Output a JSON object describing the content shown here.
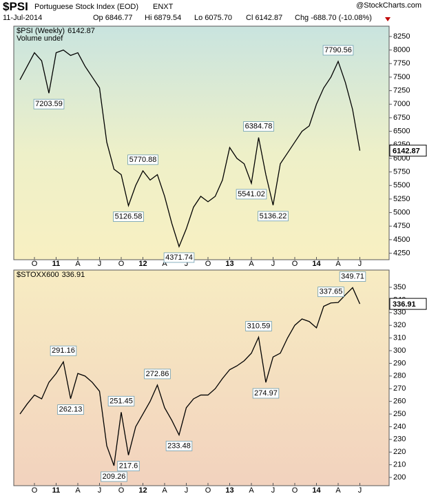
{
  "header": {
    "symbol": "$PSI",
    "name": "Portuguese Stock Index (EOD)",
    "exchange": "ENXT",
    "source": "@StockCharts.com",
    "date": "11-Jul-2014",
    "open": "Op 6846.77",
    "high": "Hi 6879.54",
    "low": "Lo 6075.70",
    "close": "Cl 6142.87",
    "change": "Chg -688.70 (-10.08%)"
  },
  "chart_data": [
    {
      "type": "line",
      "note": "Volume undef",
      "categories": [
        null,
        null,
        "O",
        null,
        null,
        "11",
        null,
        null,
        "A",
        null,
        null,
        "J",
        null,
        null,
        "O",
        null,
        null,
        "12",
        null,
        null,
        "A",
        null,
        null,
        "J",
        null,
        null,
        "O",
        null,
        null,
        "13",
        null,
        null,
        "A",
        null,
        null,
        "J",
        null,
        null,
        "O",
        null,
        null,
        "14",
        null,
        null,
        "A",
        null,
        null,
        "J"
      ],
      "series": [
        {
          "name": "$PSI (Weekly)",
          "color": "#000000",
          "values": [
            7450,
            7700,
            7950,
            7800,
            7203.59,
            7950,
            8000,
            7900,
            7950,
            7700,
            7500,
            7300,
            6300,
            5800,
            5700,
            5126.58,
            5500,
            5770.88,
            5600,
            5700,
            5300,
            4800,
            4371.74,
            4700,
            5100,
            5300,
            5200,
            5300,
            5600,
            6200,
            6000,
            5900,
            5541.02,
            6384.78,
            5700,
            5136.22,
            5900,
            6100,
            6300,
            6500,
            6600,
            7000,
            7300,
            7500,
            7790.56,
            7400,
            6900,
            6142.87
          ]
        }
      ],
      "annotate": [
        4,
        15,
        17,
        22,
        32,
        33,
        35,
        44
      ],
      "ylim": [
        4130,
        8440
      ],
      "yticks": [
        4250,
        4500,
        4750,
        5000,
        5250,
        5500,
        5750,
        6000,
        6250,
        6500,
        6750,
        7000,
        7250,
        7500,
        7750,
        8000,
        8250
      ],
      "grid": false
    },
    {
      "type": "line",
      "categories": [
        null,
        null,
        "O",
        null,
        null,
        "11",
        null,
        null,
        "A",
        null,
        null,
        "J",
        null,
        null,
        "O",
        null,
        null,
        "12",
        null,
        null,
        "A",
        null,
        null,
        "J",
        null,
        null,
        "O",
        null,
        null,
        "13",
        null,
        null,
        "A",
        null,
        null,
        "J",
        null,
        null,
        "O",
        null,
        null,
        "14",
        null,
        null,
        "A",
        null,
        null,
        "J"
      ],
      "series": [
        {
          "name": "$STOXX600",
          "color": "#000000",
          "values": [
            250,
            258,
            265,
            262,
            275,
            282,
            291.16,
            262.13,
            282,
            280,
            275,
            268,
            225,
            209.26,
            251.45,
            217.6,
            240,
            250,
            260,
            272.86,
            255,
            245,
            233.48,
            255,
            262,
            265,
            265,
            270,
            278,
            285,
            288,
            292,
            298,
            310.59,
            274.97,
            295,
            298,
            310,
            320,
            325,
            323,
            318,
            335,
            337.65,
            338,
            344,
            349.71,
            336.91
          ]
        }
      ],
      "annotate": [
        6,
        7,
        13,
        14,
        15,
        19,
        22,
        33,
        34,
        43,
        46
      ],
      "ylim": [
        193.5,
        363.6
      ],
      "yticks": [
        200,
        210,
        220,
        230,
        240,
        250,
        260,
        270,
        280,
        290,
        300,
        310,
        320,
        330,
        340,
        350
      ],
      "grid": false
    }
  ]
}
